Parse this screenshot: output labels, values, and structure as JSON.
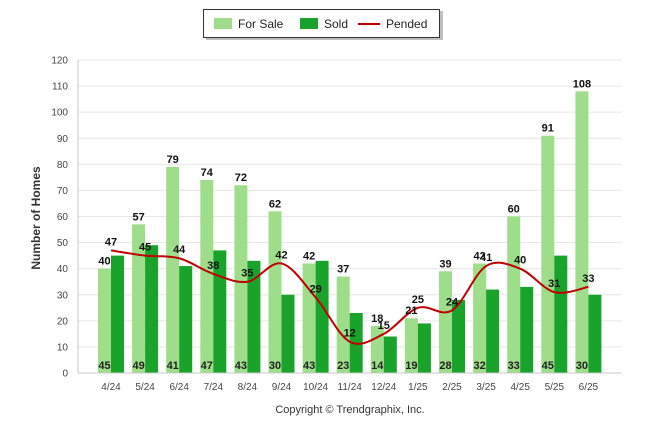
{
  "chart_data": {
    "type": "bar",
    "ylabel": "Number of Homes",
    "xlabel": "",
    "ylim": [
      0,
      120
    ],
    "yticks": [
      0,
      10,
      20,
      30,
      40,
      50,
      60,
      70,
      80,
      90,
      100,
      110,
      120
    ],
    "categories": [
      "4/24",
      "5/24",
      "6/24",
      "7/24",
      "8/24",
      "9/24",
      "10/24",
      "11/24",
      "12/24",
      "1/25",
      "2/25",
      "3/25",
      "4/25",
      "5/25",
      "6/25"
    ],
    "grid": true,
    "legend_position": "top-center",
    "series": [
      {
        "name": "For Sale",
        "kind": "bar",
        "color": "#9ede8a",
        "values": [
          40,
          57,
          79,
          74,
          72,
          62,
          42,
          37,
          18,
          21,
          39,
          42,
          60,
          91,
          108
        ]
      },
      {
        "name": "Sold",
        "kind": "bar",
        "color": "#1aa32a",
        "values": [
          45,
          49,
          41,
          47,
          43,
          30,
          43,
          23,
          14,
          19,
          28,
          32,
          33,
          45,
          30
        ]
      },
      {
        "name": "Pended",
        "kind": "line",
        "color": "#c00000",
        "values": [
          47,
          45,
          44,
          38,
          35,
          42,
          29,
          12,
          15,
          25,
          24,
          41,
          40,
          31,
          33
        ]
      }
    ]
  },
  "credit": "Copyright © Trendgraphix, Inc."
}
